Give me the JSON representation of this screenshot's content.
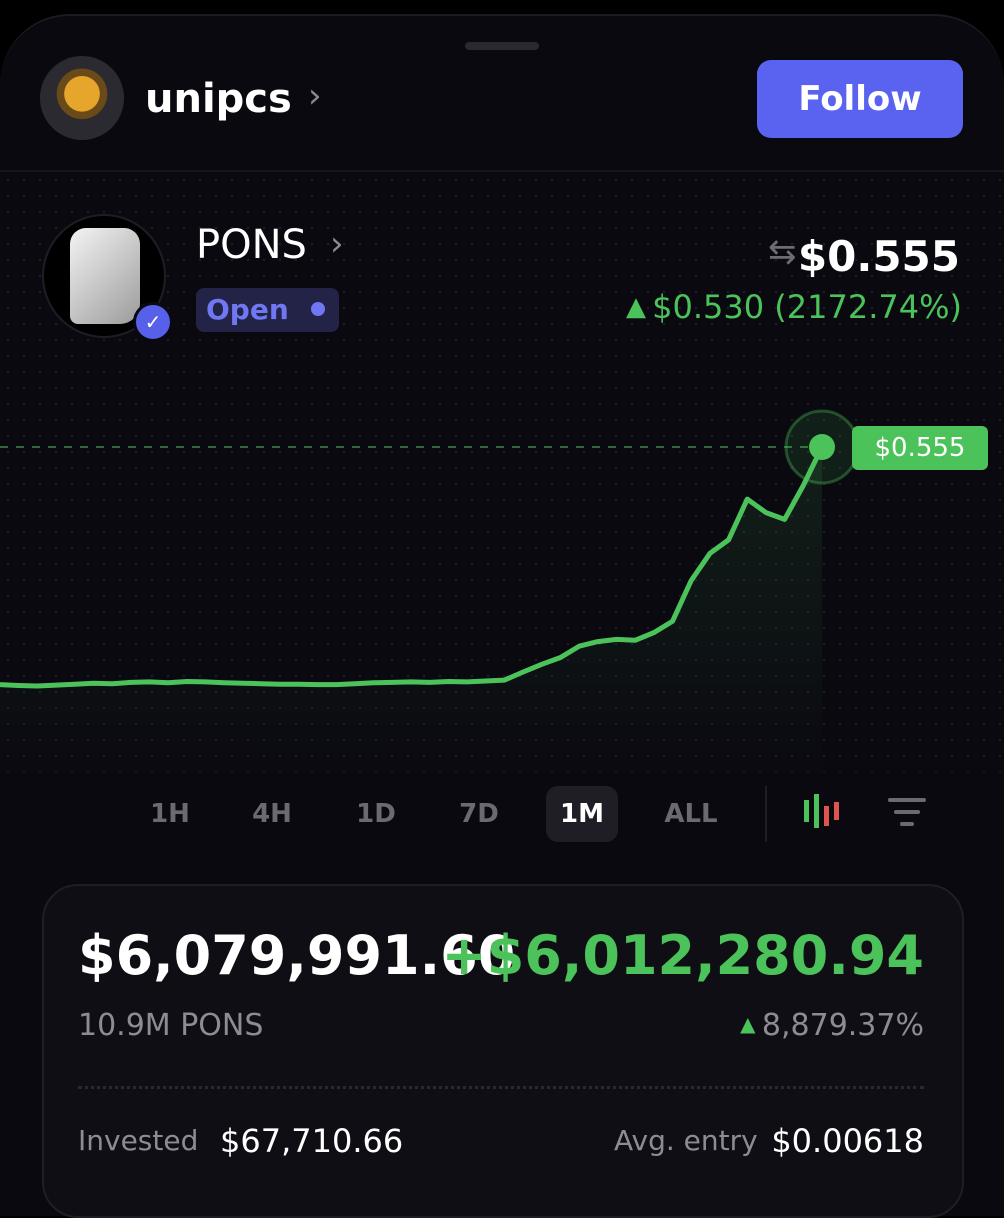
{
  "header": {
    "username": "unipcs",
    "follow_button": "Follow"
  },
  "ticker": {
    "symbol": "PONS",
    "status": "Open",
    "price": "$0.555",
    "change": "$0.530 (2172.74%)"
  },
  "chart_data": {
    "type": "line",
    "series": [
      {
        "color": "#4cc35a",
        "values": [
          0.03,
          0.028,
          0.027,
          0.029,
          0.031,
          0.033,
          0.032,
          0.035,
          0.036,
          0.034,
          0.037,
          0.036,
          0.034,
          0.033,
          0.032,
          0.031,
          0.031,
          0.03,
          0.03,
          0.032,
          0.034,
          0.035,
          0.036,
          0.035,
          0.037,
          0.036,
          0.038,
          0.04,
          0.058,
          0.075,
          0.09,
          0.115,
          0.125,
          0.13,
          0.128,
          0.145,
          0.17,
          0.26,
          0.32,
          0.35,
          0.44,
          0.41,
          0.395,
          0.47,
          0.555
        ]
      }
    ]
  },
  "timeframes": {
    "options": [
      "1H",
      "4H",
      "1D",
      "7D",
      "1M",
      "ALL"
    ],
    "selected": "1M"
  },
  "position": {
    "value": "$6,079,991.60",
    "profit": "+$6,012,280.94",
    "amount": "10.9M PONS",
    "profit_pct": "8,879.37%",
    "invested_label": "Invested",
    "invested": "$67,710.66",
    "avg_entry_label": "Avg. entry",
    "avg_entry": "$0.00618"
  }
}
